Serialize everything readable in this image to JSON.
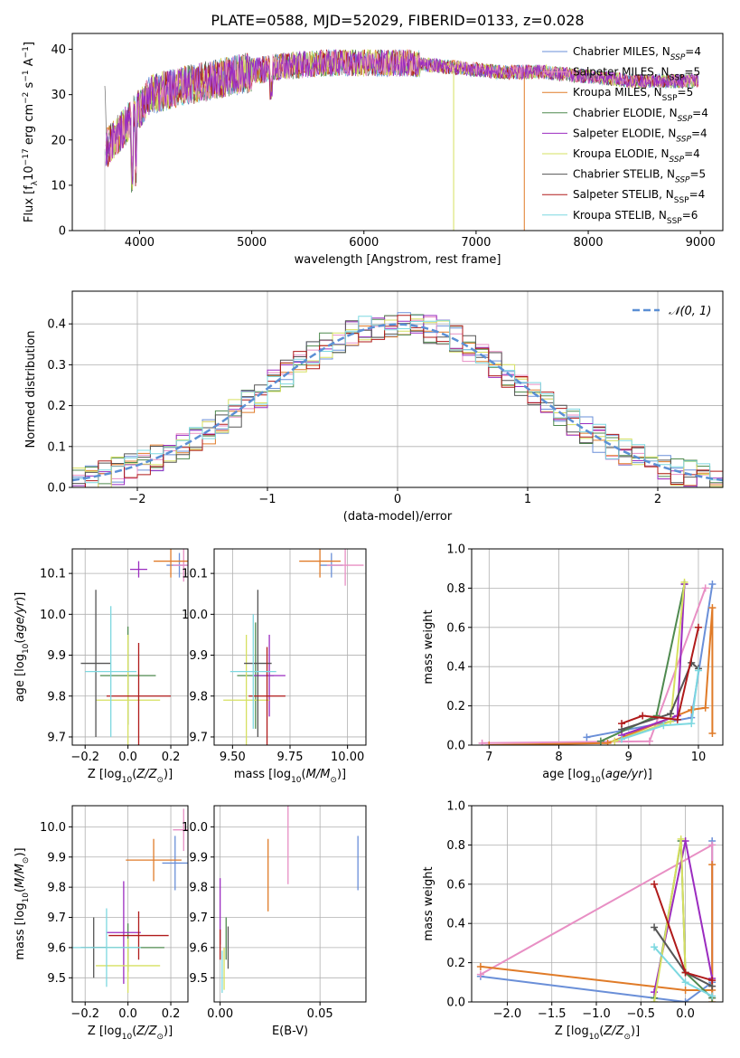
{
  "title": "PLATE=0588, MJD=52029, FIBERID=0133, z=0.028",
  "models": [
    {
      "name": "Chabrier MILES",
      "n": "4",
      "color": "#6a8fd8"
    },
    {
      "name": "Salpeter MILES",
      "n": "5",
      "color": "#e88fc4"
    },
    {
      "name": "Kroupa MILES",
      "n": "5",
      "color": "#e07b28"
    },
    {
      "name": "Chabrier ELODIE",
      "n": "4",
      "color": "#4f8a4f"
    },
    {
      "name": "Salpeter ELODIE",
      "n": "4",
      "color": "#9b2cc0"
    },
    {
      "name": "Kroupa ELODIE",
      "n": "4",
      "color": "#d6e060"
    },
    {
      "name": "Chabrier STELIB",
      "n": "5",
      "color": "#555555"
    },
    {
      "name": "Salpeter STELIB",
      "n": "4",
      "color": "#b01a1a"
    },
    {
      "name": "Kroupa STELIB",
      "n": "6",
      "color": "#7dd8e0"
    }
  ],
  "chart_data": [
    {
      "id": "spectrum",
      "type": "line",
      "xlabel": "wavelength [Angstrom, rest frame]",
      "ylabel": "Flux [f_λ 10^-17 erg cm^-2 s^-1 A^-1]",
      "xlim": [
        3400,
        9200
      ],
      "ylim": [
        0,
        43.5
      ],
      "xticks": [
        4000,
        5000,
        6000,
        7000,
        8000,
        9000
      ],
      "yticks": [
        0,
        10,
        20,
        30,
        40
      ],
      "legend_position": "top-right",
      "grid": false,
      "series_envelope": {
        "x": [
          3700,
          3900,
          4100,
          4400,
          4800,
          5200,
          5600,
          6000,
          6400,
          6800,
          7200,
          7600,
          8000,
          8400,
          8800
        ],
        "y": [
          18,
          24,
          30,
          32,
          34,
          36,
          37,
          37,
          37,
          36,
          35,
          35,
          34,
          33,
          33
        ]
      }
    },
    {
      "id": "residual-histogram",
      "type": "line",
      "xlabel": "(data-model)/error",
      "ylabel": "Normed distribution",
      "xlim": [
        -2.5,
        2.5
      ],
      "ylim": [
        0,
        0.48
      ],
      "xticks": [
        -2,
        -1,
        0,
        1,
        2
      ],
      "yticks": [
        0.0,
        0.1,
        0.2,
        0.3,
        0.4
      ],
      "grid": true,
      "legend_position": "top-right",
      "legend_label": "𝒩(0, 1)"
    },
    {
      "id": "age-vs-Z",
      "type": "scatter",
      "xlabel": "Z [log10(Z/Z⊙)]",
      "ylabel": "age  [log10(age/yr)]",
      "xlim": [
        -0.26,
        0.28
      ],
      "ylim": [
        9.68,
        10.16
      ],
      "xticks": [
        -0.2,
        0.0,
        0.2
      ],
      "yticks": [
        9.7,
        9.8,
        9.9,
        10.0,
        10.1
      ],
      "grid": true,
      "points": [
        {
          "x": 0.24,
          "y": 10.12,
          "xerr": 0.06,
          "yerr": 0.03
        },
        {
          "x": 0.26,
          "y": 10.12,
          "xerr": 0.05,
          "yerr": 0.04
        },
        {
          "x": 0.2,
          "y": 10.13,
          "xerr": 0.08,
          "yerr": 0.04
        },
        {
          "x": 0.0,
          "y": 9.85,
          "xerr": 0.13,
          "yerr": 0.12
        },
        {
          "x": 0.05,
          "y": 10.11,
          "xerr": 0.04,
          "yerr": 0.02
        },
        {
          "x": 0.0,
          "y": 9.79,
          "xerr": 0.15,
          "yerr": 0.16
        },
        {
          "x": -0.15,
          "y": 9.88,
          "xerr": 0.07,
          "yerr": 0.18
        },
        {
          "x": 0.05,
          "y": 9.8,
          "xerr": 0.15,
          "yerr": 0.13
        },
        {
          "x": -0.08,
          "y": 9.86,
          "xerr": 0.12,
          "yerr": 0.16
        }
      ]
    },
    {
      "id": "age-vs-mass",
      "type": "scatter",
      "xlabel": "mass [log10(M/M⊙)]",
      "ylabel": "",
      "xlim": [
        9.42,
        10.08
      ],
      "ylim": [
        9.68,
        10.16
      ],
      "xticks": [
        9.5,
        9.75,
        10.0
      ],
      "yticks": [
        9.7,
        9.8,
        9.9,
        10.0,
        10.1
      ],
      "grid": true,
      "points": [
        {
          "x": 9.93,
          "y": 10.12,
          "xerr": 0.05,
          "yerr": 0.03
        },
        {
          "x": 9.99,
          "y": 10.12,
          "xerr": 0.08,
          "yerr": 0.05
        },
        {
          "x": 9.88,
          "y": 10.13,
          "xerr": 0.09,
          "yerr": 0.04
        },
        {
          "x": 9.6,
          "y": 9.85,
          "xerr": 0.08,
          "yerr": 0.13
        },
        {
          "x": 9.66,
          "y": 9.85,
          "xerr": 0.07,
          "yerr": 0.1
        },
        {
          "x": 9.56,
          "y": 9.79,
          "xerr": 0.1,
          "yerr": 0.16
        },
        {
          "x": 9.61,
          "y": 9.88,
          "xerr": 0.06,
          "yerr": 0.18
        },
        {
          "x": 9.65,
          "y": 9.8,
          "xerr": 0.08,
          "yerr": 0.12
        },
        {
          "x": 9.59,
          "y": 9.86,
          "xerr": 0.1,
          "yerr": 0.14
        }
      ]
    },
    {
      "id": "weight-vs-age",
      "type": "line",
      "xlabel": "age  [log10(age/yr)]",
      "ylabel": "mass weight",
      "xlim": [
        6.75,
        10.35
      ],
      "ylim": [
        0,
        1
      ],
      "xticks": [
        7,
        8,
        9,
        10
      ],
      "yticks": [
        0.0,
        0.2,
        0.4,
        0.6,
        0.8,
        1.0
      ],
      "grid": true,
      "series": [
        {
          "model": 0,
          "x": [
            8.4,
            9.9,
            10.2
          ],
          "y": [
            0.04,
            0.14,
            0.82
          ]
        },
        {
          "model": 1,
          "x": [
            6.9,
            9.3,
            10.1
          ],
          "y": [
            0.01,
            0.02,
            0.8
          ]
        },
        {
          "model": 2,
          "x": [
            7.0,
            8.7,
            9.9,
            10.1,
            10.2,
            10.2
          ],
          "y": [
            0.0,
            0.01,
            0.18,
            0.19,
            0.7,
            0.06
          ]
        },
        {
          "model": 3,
          "x": [
            8.6,
            9.4,
            9.8
          ],
          "y": [
            0.02,
            0.15,
            0.82
          ]
        },
        {
          "model": 4,
          "x": [
            8.9,
            9.7,
            9.8
          ],
          "y": [
            0.05,
            0.15,
            0.82
          ]
        },
        {
          "model": 5,
          "x": [
            8.8,
            9.6,
            9.8
          ],
          "y": [
            0.02,
            0.12,
            0.83
          ]
        },
        {
          "model": 6,
          "x": [
            8.9,
            9.6,
            9.9,
            10.0
          ],
          "y": [
            0.08,
            0.16,
            0.42,
            0.39
          ]
        },
        {
          "model": 7,
          "x": [
            8.9,
            9.2,
            9.7,
            10.0
          ],
          "y": [
            0.11,
            0.15,
            0.13,
            0.6
          ]
        },
        {
          "model": 8,
          "x": [
            8.9,
            9.5,
            9.9,
            10.0
          ],
          "y": [
            0.03,
            0.1,
            0.11,
            0.38
          ]
        }
      ]
    },
    {
      "id": "mass-vs-Z",
      "type": "scatter",
      "xlabel": "Z [log10(Z/Z⊙)]",
      "ylabel": "mass [log10(M/M⊙)]",
      "xlim": [
        -0.26,
        0.28
      ],
      "ylim": [
        9.42,
        10.07
      ],
      "xticks": [
        -0.2,
        0.0,
        0.2
      ],
      "yticks": [
        9.5,
        9.6,
        9.7,
        9.8,
        9.9,
        10.0
      ],
      "grid": true,
      "points": [
        {
          "x": 0.22,
          "y": 9.88,
          "xerr": 0.06,
          "yerr": 0.09
        },
        {
          "x": 0.26,
          "y": 9.99,
          "xerr": 0.05,
          "yerr": 0.07
        },
        {
          "x": 0.12,
          "y": 9.89,
          "xerr": 0.13,
          "yerr": 0.07
        },
        {
          "x": 0.0,
          "y": 9.6,
          "xerr": 0.17,
          "yerr": 0.08
        },
        {
          "x": -0.02,
          "y": 9.65,
          "xerr": 0.08,
          "yerr": 0.17
        },
        {
          "x": 0.0,
          "y": 9.54,
          "xerr": 0.15,
          "yerr": 0.09
        },
        {
          "x": -0.16,
          "y": 9.6,
          "xerr": 0.06,
          "yerr": 0.1
        },
        {
          "x": 0.05,
          "y": 9.64,
          "xerr": 0.14,
          "yerr": 0.08
        },
        {
          "x": -0.1,
          "y": 9.6,
          "xerr": 0.16,
          "yerr": 0.13
        }
      ]
    },
    {
      "id": "mass-vs-ebv",
      "type": "scatter",
      "xlabel": "E(B-V)",
      "ylabel": "",
      "xlim": [
        -0.003,
        0.073
      ],
      "ylim": [
        9.42,
        10.07
      ],
      "xticks": [
        0.0,
        0.05
      ],
      "yticks": [
        9.5,
        9.6,
        9.7,
        9.8,
        9.9,
        10.0
      ],
      "grid": true,
      "points": [
        {
          "x": 0.069,
          "y": 9.88,
          "xerr": 0,
          "yerr": 0.09
        },
        {
          "x": 0.034,
          "y": 9.94,
          "xerr": 0,
          "yerr": 0.13
        },
        {
          "x": 0.024,
          "y": 9.84,
          "xerr": 0,
          "yerr": 0.12
        },
        {
          "x": 0.003,
          "y": 9.63,
          "xerr": 0,
          "yerr": 0.07
        },
        {
          "x": 0.0,
          "y": 9.72,
          "xerr": 0,
          "yerr": 0.11
        },
        {
          "x": 0.002,
          "y": 9.53,
          "xerr": 0,
          "yerr": 0.07
        },
        {
          "x": 0.004,
          "y": 9.6,
          "xerr": 0,
          "yerr": 0.07
        },
        {
          "x": 0.0,
          "y": 9.61,
          "xerr": 0,
          "yerr": 0.05
        },
        {
          "x": 0.001,
          "y": 9.52,
          "xerr": 0,
          "yerr": 0.07
        }
      ]
    },
    {
      "id": "weight-vs-Z",
      "type": "line",
      "xlabel": "Z [log10(Z/Z⊙)]",
      "ylabel": "mass weight",
      "xlim": [
        -2.4,
        0.42
      ],
      "ylim": [
        0,
        1
      ],
      "xticks": [
        -2.0,
        -1.5,
        -1.0,
        -0.5,
        0.0
      ],
      "yticks": [
        0.0,
        0.2,
        0.4,
        0.6,
        0.8,
        1.0
      ],
      "grid": true,
      "series": [
        {
          "model": 0,
          "x": [
            -2.3,
            0.0,
            0.3,
            0.3
          ],
          "y": [
            0.13,
            0.0,
            0.1,
            0.82
          ]
        },
        {
          "model": 1,
          "x": [
            -2.3,
            0.3,
            0.3
          ],
          "y": [
            0.14,
            0.8,
            0.02
          ]
        },
        {
          "model": 2,
          "x": [
            -2.3,
            0.0,
            0.3,
            0.3,
            0.3
          ],
          "y": [
            0.18,
            0.06,
            0.06,
            0.7,
            0.0
          ]
        },
        {
          "model": 3,
          "x": [
            -0.35,
            -0.05,
            0.0,
            0.3
          ],
          "y": [
            0.02,
            0.82,
            0.15,
            0.02
          ]
        },
        {
          "model": 4,
          "x": [
            -0.35,
            0.0,
            0.3
          ],
          "y": [
            0.05,
            0.82,
            0.12
          ]
        },
        {
          "model": 5,
          "x": [
            -0.35,
            -0.05,
            0.0
          ],
          "y": [
            0.0,
            0.83,
            0.15
          ]
        },
        {
          "model": 6,
          "x": [
            -0.35,
            0.0,
            0.3
          ],
          "y": [
            0.38,
            0.15,
            0.08
          ]
        },
        {
          "model": 7,
          "x": [
            -0.35,
            0.0,
            0.3
          ],
          "y": [
            0.6,
            0.15,
            0.11
          ]
        },
        {
          "model": 8,
          "x": [
            -0.35,
            0.0,
            0.3
          ],
          "y": [
            0.28,
            0.1,
            0.03
          ]
        }
      ]
    }
  ]
}
